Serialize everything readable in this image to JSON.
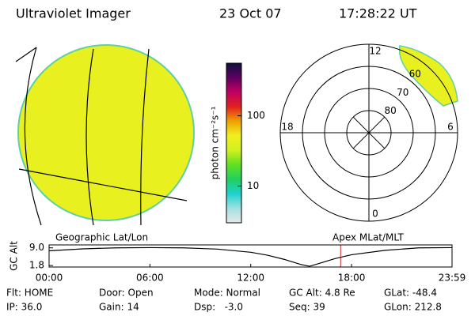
{
  "header": {
    "title": "Ultraviolet Imager",
    "date": "23 Oct 07",
    "time": "17:28:22 UT"
  },
  "colorbar": {
    "label": "photon cm⁻²s⁻¹",
    "lim": [
      3,
      560
    ],
    "ticks": [
      10,
      100
    ],
    "log": true,
    "colors": [
      "#e8e8e8",
      "#a0e0e0",
      "#20d0d0",
      "#20d060",
      "#60e020",
      "#d0f020",
      "#f0f020",
      "#f0a000",
      "#e02020",
      "#c00060",
      "#600060",
      "#101040"
    ]
  },
  "polar": {
    "rlim": [
      90,
      50
    ],
    "rings": [
      80,
      70,
      60
    ],
    "mlt_labels": [
      12,
      6,
      18,
      0
    ]
  },
  "chart_data": {
    "type": "line",
    "y_label": "GC Alt",
    "annotations": [
      "Geographic Lat/Lon",
      "Apex MLat/MLT"
    ],
    "x": [
      0,
      2,
      4,
      6,
      8,
      10,
      12,
      13,
      14,
      15,
      15.5,
      16,
      17,
      18,
      20,
      22,
      23.98
    ],
    "values": [
      7.8,
      8.6,
      9.0,
      9.1,
      9.0,
      8.5,
      7.2,
      6.0,
      4.3,
      2.2,
      1.5,
      2.5,
      4.6,
      6.2,
      8.0,
      9.0,
      9.1
    ],
    "color": "#000000",
    "xlim": [
      0,
      23.98
    ],
    "xticks": [
      {
        "value": 0,
        "label": "00:00"
      },
      {
        "value": 6,
        "label": "06:00"
      },
      {
        "value": 12,
        "label": "12:00"
      },
      {
        "value": 18,
        "label": "18:00"
      },
      {
        "value": 23.98,
        "label": "23:59"
      }
    ],
    "ylim": [
      1.2,
      10.2
    ],
    "yticks": [
      1.8,
      {
        "value": 9,
        "label": "9.0"
      }
    ],
    "marker": {
      "x": 17.35,
      "color": "#d02020"
    }
  },
  "footer": [
    [
      "Flt: HOME",
      "IP: 36.0"
    ],
    [
      "Door: Open",
      "Gain: 14"
    ],
    [
      "Mode: Normal",
      "Dsp:   -3.0"
    ],
    [
      "GC Alt: 4.8 Re",
      "Seq: 39"
    ],
    [
      "GLat: -48.4",
      "GLon: 212.8"
    ]
  ]
}
